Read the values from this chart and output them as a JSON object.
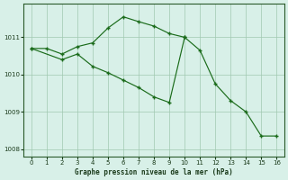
{
  "line1_x": [
    0,
    1,
    2,
    3,
    4,
    5,
    6,
    7,
    8,
    9,
    10
  ],
  "line1_y": [
    1010.7,
    1010.7,
    1010.55,
    1010.75,
    1010.85,
    1011.25,
    1011.55,
    1011.42,
    1011.3,
    1011.1,
    1011.0
  ],
  "line2_x": [
    0,
    2,
    3,
    4,
    5,
    6,
    7,
    8,
    9,
    10,
    11,
    12,
    13,
    14,
    15,
    16
  ],
  "line2_y": [
    1010.7,
    1010.4,
    1010.55,
    1010.22,
    1010.05,
    1009.85,
    1009.65,
    1009.4,
    1009.25,
    1011.0,
    1010.65,
    1009.75,
    1009.3,
    1009.0,
    1008.35,
    1008.35
  ],
  "line_color": "#1a6b1a",
  "bg_color": "#d8f0e8",
  "grid_color": "#a0c8b0",
  "title": "Graphe pression niveau de la mer (hPa)",
  "xlim": [
    -0.5,
    16.5
  ],
  "ylim": [
    1007.8,
    1011.9
  ],
  "yticks": [
    1008,
    1009,
    1010,
    1011
  ],
  "xticks": [
    0,
    1,
    2,
    3,
    4,
    5,
    6,
    7,
    8,
    9,
    10,
    11,
    12,
    13,
    14,
    15,
    16
  ]
}
